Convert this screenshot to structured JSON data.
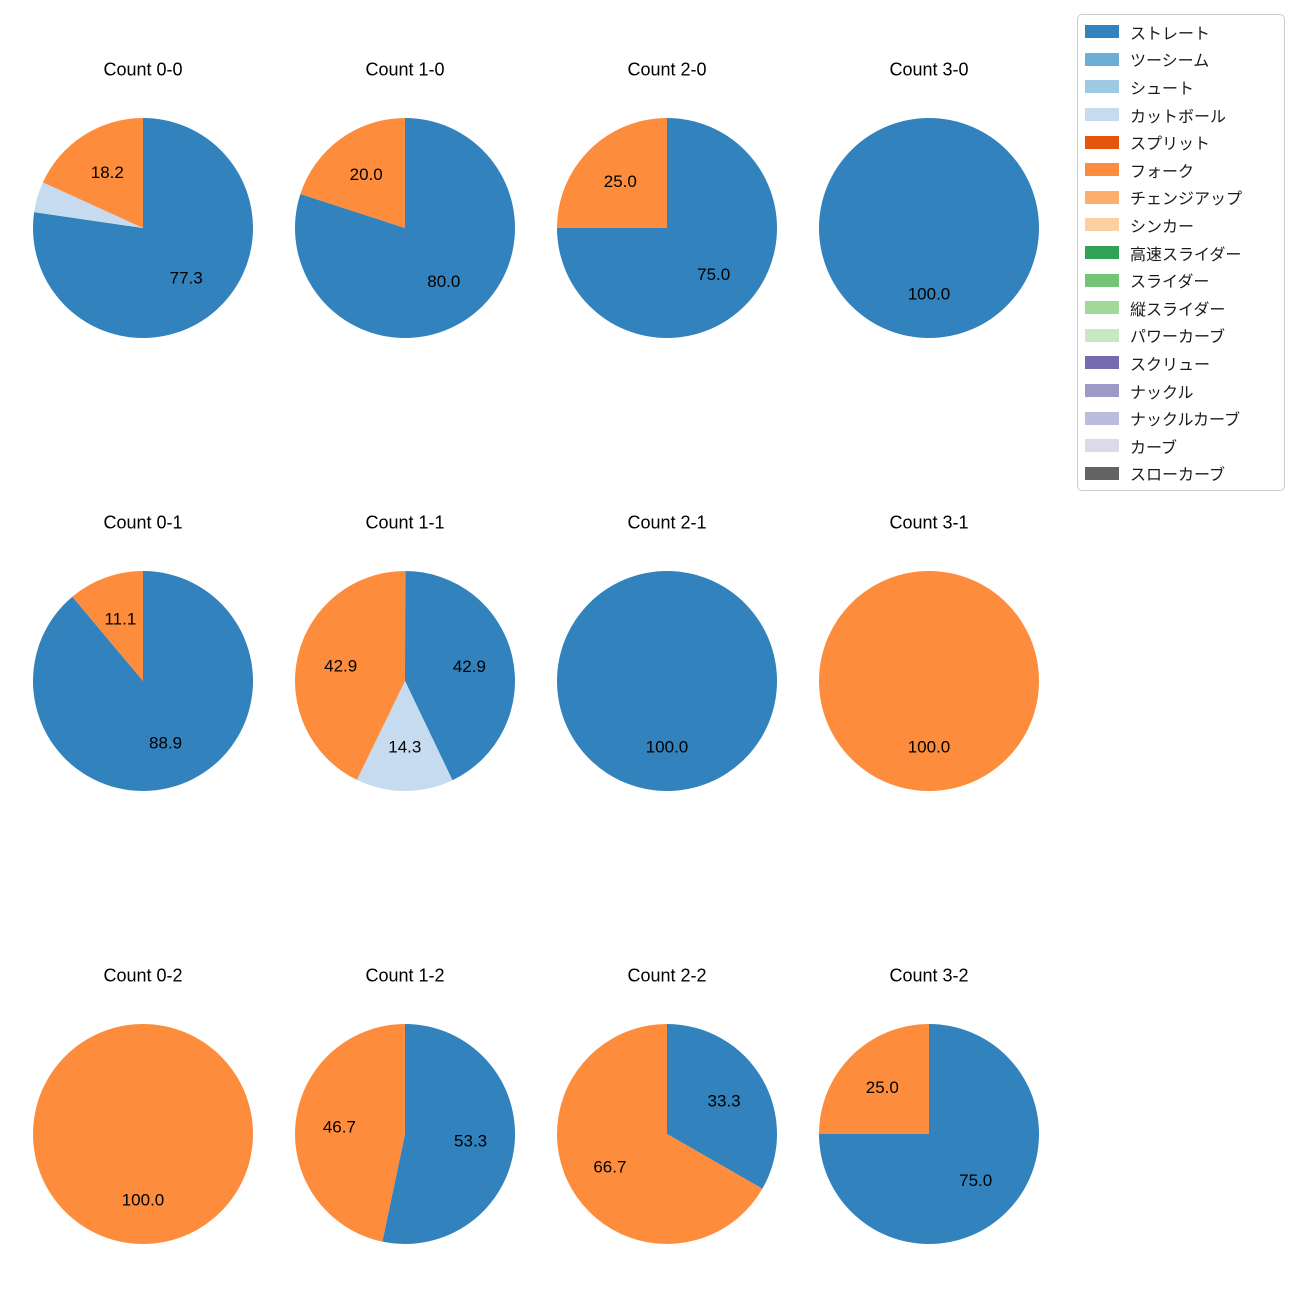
{
  "figure": {
    "background": "#ffffff"
  },
  "chart_data": {
    "type": "pie",
    "layout": "4 columns x 3 rows of pie charts",
    "unit": "percent",
    "legend_position": "upper right",
    "grid": "off",
    "palette": {
      "ストレート": "#3182bd",
      "ツーシーム": "#6baed6",
      "シュート": "#9ecae1",
      "カットボール": "#c6dbef",
      "スプリット": "#e6550d",
      "フォーク": "#fd8d3c",
      "チェンジアップ": "#fdae6b",
      "シンカー": "#fdd0a2",
      "高速スライダー": "#31a354",
      "スライダー": "#74c476",
      "縦スライダー": "#a1d99b",
      "パワーカーブ": "#c7e9c0",
      "スクリュー": "#756bb1",
      "ナックル": "#9e9ac8",
      "ナックルカーブ": "#bcbddc",
      "カーブ": "#dadaeb",
      "スローカーブ": "#636363"
    },
    "legend_entries": [
      "ストレート",
      "ツーシーム",
      "シュート",
      "カットボール",
      "スプリット",
      "フォーク",
      "チェンジアップ",
      "シンカー",
      "高速スライダー",
      "スライダー",
      "縦スライダー",
      "パワーカーブ",
      "スクリュー",
      "ナックル",
      "ナックルカーブ",
      "カーブ",
      "スローカーブ"
    ],
    "pies": [
      {
        "title": "Count 0-0",
        "slices": [
          {
            "pitch": "ストレート",
            "pct": 77.3,
            "label": "77.3"
          },
          {
            "pitch": "カットボール",
            "pct": 4.5,
            "label": ""
          },
          {
            "pitch": "フォーク",
            "pct": 18.2,
            "label": "18.2"
          }
        ]
      },
      {
        "title": "Count 1-0",
        "slices": [
          {
            "pitch": "ストレート",
            "pct": 80.0,
            "label": "80.0"
          },
          {
            "pitch": "フォーク",
            "pct": 20.0,
            "label": "20.0"
          }
        ]
      },
      {
        "title": "Count 2-0",
        "slices": [
          {
            "pitch": "ストレート",
            "pct": 75.0,
            "label": "75.0"
          },
          {
            "pitch": "フォーク",
            "pct": 25.0,
            "label": "25.0"
          }
        ]
      },
      {
        "title": "Count 3-0",
        "slices": [
          {
            "pitch": "ストレート",
            "pct": 100.0,
            "label": "100.0"
          }
        ]
      },
      {
        "title": "Count 0-1",
        "slices": [
          {
            "pitch": "ストレート",
            "pct": 88.9,
            "label": "88.9"
          },
          {
            "pitch": "フォーク",
            "pct": 11.1,
            "label": "11.1"
          }
        ]
      },
      {
        "title": "Count 1-1",
        "slices": [
          {
            "pitch": "ストレート",
            "pct": 42.9,
            "label": "42.9"
          },
          {
            "pitch": "カットボール",
            "pct": 14.3,
            "label": "14.3"
          },
          {
            "pitch": "フォーク",
            "pct": 42.9,
            "label": "42.9"
          }
        ]
      },
      {
        "title": "Count 2-1",
        "slices": [
          {
            "pitch": "ストレート",
            "pct": 100.0,
            "label": "100.0"
          }
        ]
      },
      {
        "title": "Count 3-1",
        "slices": [
          {
            "pitch": "フォーク",
            "pct": 100.0,
            "label": "100.0"
          }
        ]
      },
      {
        "title": "Count 0-2",
        "slices": [
          {
            "pitch": "フォーク",
            "pct": 100.0,
            "label": "100.0"
          }
        ]
      },
      {
        "title": "Count 1-2",
        "slices": [
          {
            "pitch": "ストレート",
            "pct": 53.3,
            "label": "53.3"
          },
          {
            "pitch": "フォーク",
            "pct": 46.7,
            "label": "46.7"
          }
        ]
      },
      {
        "title": "Count 2-2",
        "slices": [
          {
            "pitch": "ストレート",
            "pct": 33.3,
            "label": "33.3"
          },
          {
            "pitch": "フォーク",
            "pct": 66.7,
            "label": "66.7"
          }
        ]
      },
      {
        "title": "Count 3-2",
        "slices": [
          {
            "pitch": "ストレート",
            "pct": 75.0,
            "label": "75.0"
          },
          {
            "pitch": "フォーク",
            "pct": 25.0,
            "label": "25.0"
          }
        ]
      }
    ]
  }
}
